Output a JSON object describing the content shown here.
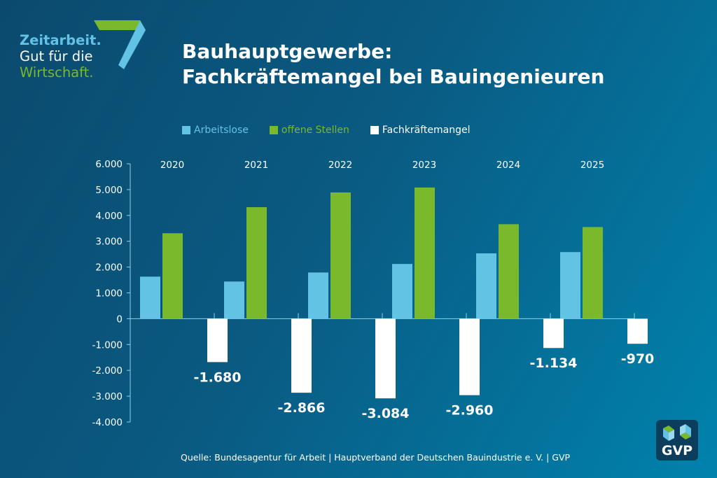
{
  "logo": {
    "line1": "Zeitarbeit.",
    "line2": "Gut für die",
    "line3": "Wirtschaft."
  },
  "title": {
    "line1": "Bauhauptgewerbe:",
    "line2": "Fachkräftemangel bei Bauingenieuren"
  },
  "source": "Quelle: Bundesagentur für Arbeit | Hauptverband der Deutschen Bauindustrie e. V. | GVP",
  "badge": {
    "text": "GVP"
  },
  "colors": {
    "arbeitslose": "#63c3e5",
    "offene": "#7ab82c",
    "mangel": "#ffffff",
    "axis": "#8fd0ea"
  },
  "chart_data": {
    "type": "bar",
    "title": "Bauhauptgewerbe: Fachkräftemangel bei Bauingenieuren",
    "xlabel": "",
    "ylabel": "",
    "categories": [
      "2020",
      "2021",
      "2022",
      "2023",
      "2024",
      "2025"
    ],
    "series": [
      {
        "name": "Arbeitslose",
        "values": [
          1630,
          1440,
          1790,
          2120,
          2530,
          2580
        ]
      },
      {
        "name": "offene Stellen",
        "values": [
          3310,
          4320,
          4890,
          5080,
          3660,
          3550
        ]
      },
      {
        "name": "Fachkräftemangel",
        "values": [
          -1680,
          -2866,
          -3084,
          -2960,
          -1134,
          -970
        ]
      }
    ],
    "data_labels": [
      "-1.680",
      "-2.866",
      "-3.084",
      "-2.960",
      "-1.134",
      "-970"
    ],
    "yticks": [
      6000,
      5000,
      4000,
      3000,
      2000,
      1000,
      0,
      -1000,
      -2000,
      -3000,
      -4000
    ],
    "ytick_labels": [
      "6.000",
      "5.000",
      "4.000",
      "3.000",
      "2.000",
      "1.000",
      "0",
      "-1.000",
      "-2.000",
      "-3.000",
      "-4.000"
    ],
    "ylim": [
      -4000,
      6000
    ],
    "grid": false,
    "legend": "top"
  }
}
